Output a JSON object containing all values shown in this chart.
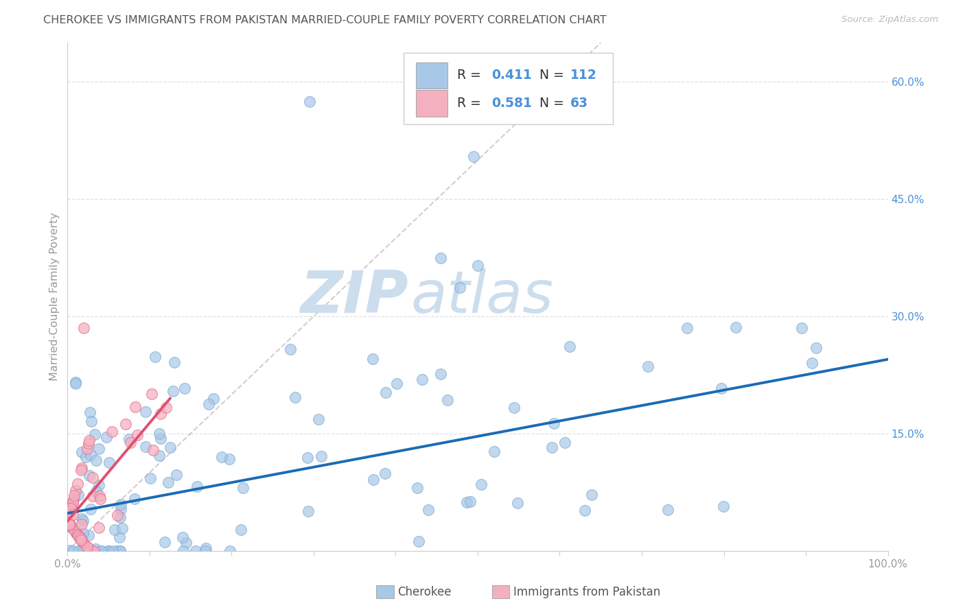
{
  "title": "CHEROKEE VS IMMIGRANTS FROM PAKISTAN MARRIED-COUPLE FAMILY POVERTY CORRELATION CHART",
  "source": "Source: ZipAtlas.com",
  "ylabel": "Married-Couple Family Poverty",
  "xlim": [
    0.0,
    1.0
  ],
  "ylim": [
    0.0,
    0.65
  ],
  "xtick_positions": [
    0.0,
    0.1,
    0.2,
    0.3,
    0.4,
    0.5,
    0.6,
    0.7,
    0.8,
    0.9,
    1.0
  ],
  "xticklabels_show": [
    "0.0%",
    "",
    "",
    "",
    "",
    "",
    "",
    "",
    "",
    "",
    "100.0%"
  ],
  "ytick_positions": [
    0.0,
    0.15,
    0.3,
    0.45,
    0.6
  ],
  "yticklabels": [
    "",
    "15.0%",
    "30.0%",
    "45.0%",
    "60.0%"
  ],
  "cherokee_R": "0.411",
  "cherokee_N": "112",
  "pakistan_R": "0.581",
  "pakistan_N": "63",
  "cherokee_color": "#a8c8e8",
  "cherokee_edge_color": "#7aaad0",
  "cherokee_line_color": "#1a6bb5",
  "pakistan_color": "#f5b0c0",
  "pakistan_edge_color": "#e07090",
  "pakistan_line_color": "#e05070",
  "diagonal_color": "#d0c8c8",
  "watermark_color": "#ccdded",
  "label_color_blue": "#4a90d9",
  "text_color": "#555555",
  "tick_color": "#999999",
  "grid_color": "#e0e0e0",
  "legend_border_color": "#cccccc",
  "legend_label_1": "Cherokee",
  "legend_label_2": "Immigrants from Pakistan",
  "cherokee_line_x": [
    0.0,
    1.0
  ],
  "cherokee_line_y": [
    0.048,
    0.245
  ],
  "pakistan_line_x": [
    0.0,
    0.125
  ],
  "pakistan_line_y": [
    0.038,
    0.195
  ]
}
